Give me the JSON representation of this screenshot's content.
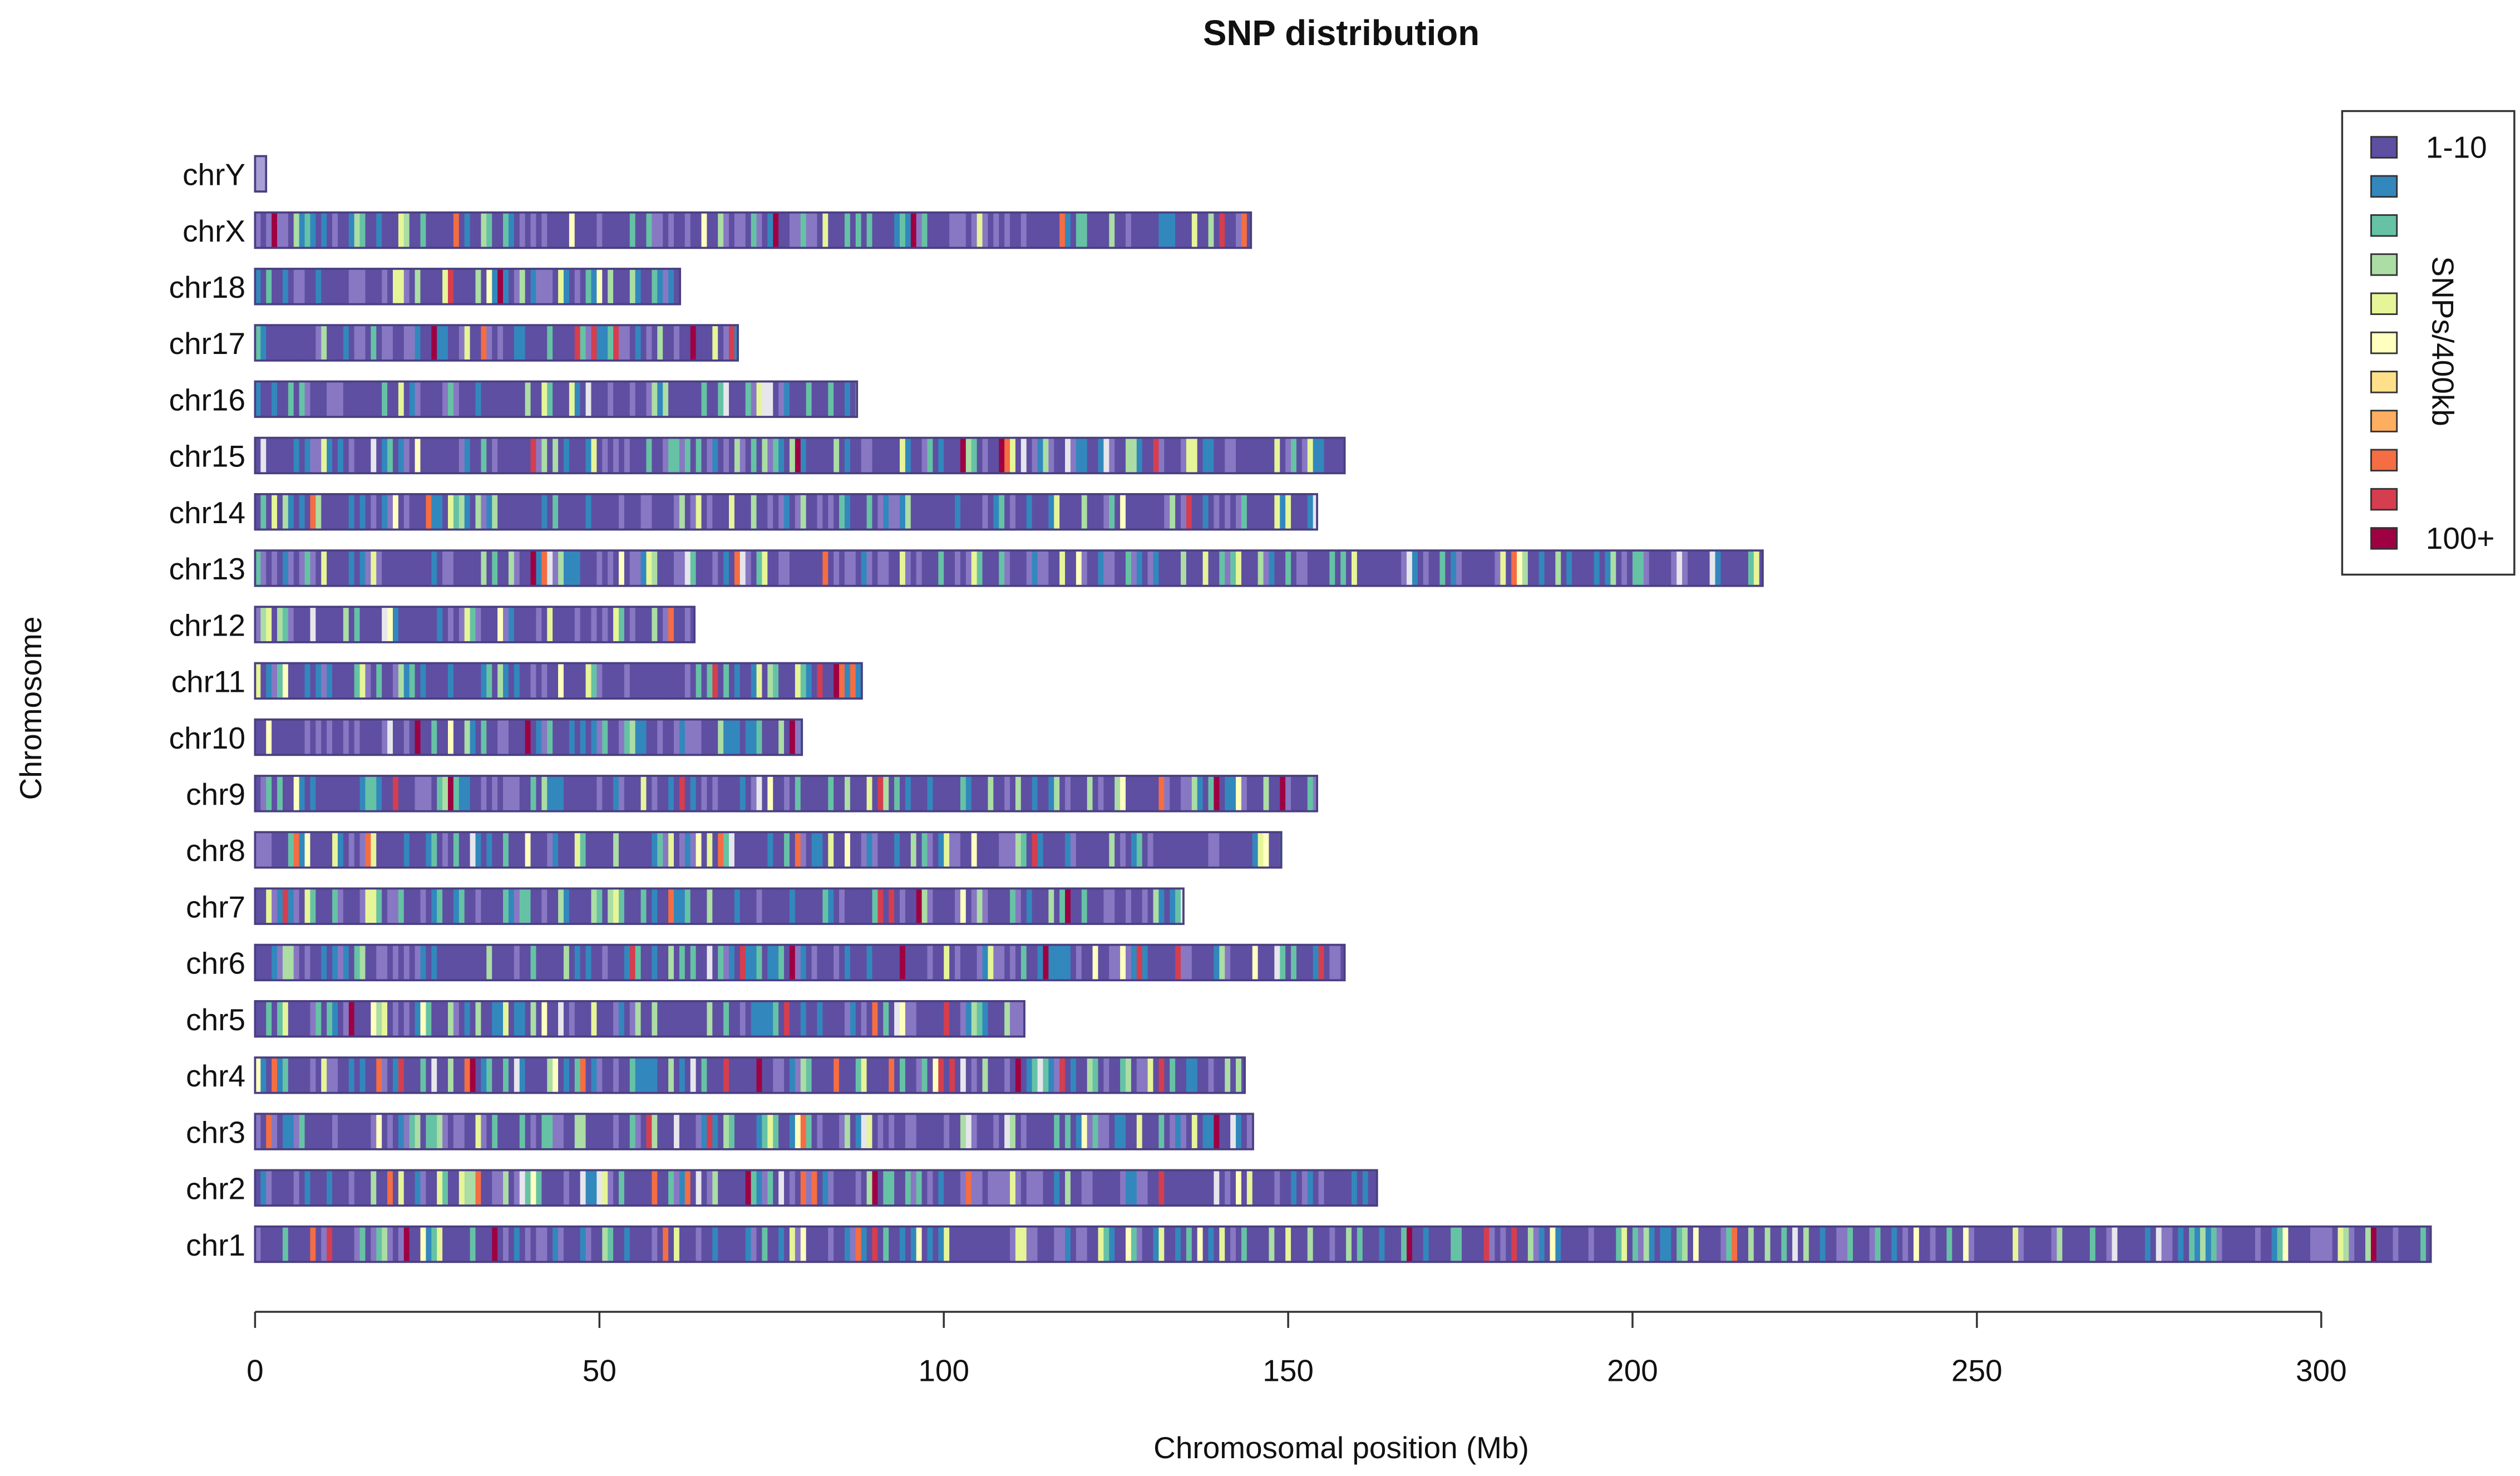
{
  "chart_data": {
    "type": "heatmap",
    "title": "SNP distribution",
    "xlabel": "Chromosomal position (Mb)",
    "ylabel": "Chromosome",
    "xlim": [
      0,
      316
    ],
    "xticks": [
      0,
      50,
      100,
      150,
      200,
      250,
      300
    ],
    "grid": false,
    "legend": {
      "title": "SNPs/400kb",
      "placement": "top-right",
      "labels": [
        "1-10",
        "",
        "",
        "",
        "",
        "",
        "",
        "",
        "",
        "",
        "100+"
      ],
      "colors": [
        "#5e4fa2",
        "#3288bd",
        "#66c2a5",
        "#abdda4",
        "#e6f598",
        "#ffffbf",
        "#fee08b",
        "#fdae61",
        "#f46d43",
        "#d53e4f",
        "#9e0142"
      ]
    },
    "chromosomes": [
      {
        "name": "chrY",
        "length_mb": 1.6
      },
      {
        "name": "chrX",
        "length_mb": 144.6
      },
      {
        "name": "chr18",
        "length_mb": 61.7
      },
      {
        "name": "chr17",
        "length_mb": 70.1
      },
      {
        "name": "chr16",
        "length_mb": 87.4
      },
      {
        "name": "chr15",
        "length_mb": 158.2
      },
      {
        "name": "chr14",
        "length_mb": 154.2
      },
      {
        "name": "chr13",
        "length_mb": 218.9
      },
      {
        "name": "chr12",
        "length_mb": 63.8
      },
      {
        "name": "chr11",
        "length_mb": 88.1
      },
      {
        "name": "chr10",
        "length_mb": 79.4
      },
      {
        "name": "chr9",
        "length_mb": 154.2
      },
      {
        "name": "chr8",
        "length_mb": 149.0
      },
      {
        "name": "chr7",
        "length_mb": 134.8
      },
      {
        "name": "chr6",
        "length_mb": 158.2
      },
      {
        "name": "chr5",
        "length_mb": 111.7
      },
      {
        "name": "chr4",
        "length_mb": 143.7
      },
      {
        "name": "chr3",
        "length_mb": 144.9
      },
      {
        "name": "chr2",
        "length_mb": 162.9
      },
      {
        "name": "chr1",
        "length_mb": 315.9
      }
    ]
  }
}
